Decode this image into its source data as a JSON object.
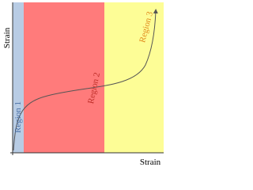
{
  "axes": {
    "y_label": "Strain",
    "x_label": "Strain"
  },
  "regions": [
    {
      "label": "Region 1"
    },
    {
      "label": "Region 2"
    },
    {
      "label": "Region 3"
    }
  ]
}
